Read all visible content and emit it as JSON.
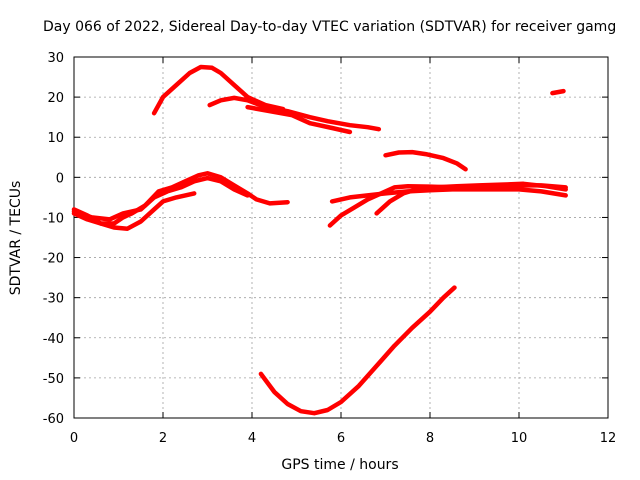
{
  "chart_data": {
    "type": "line",
    "title": "Day 066 of 2022, Sidereal Day-to-day VTEC variation (SDTVAR) for receiver gamg",
    "xlabel": "GPS time / hours",
    "ylabel": "SDTVAR / TECUs",
    "xlim": [
      0,
      12
    ],
    "ylim": [
      -60,
      30
    ],
    "xticks": [
      0,
      2,
      4,
      6,
      8,
      10,
      12
    ],
    "yticks": [
      -60,
      -50,
      -40,
      -30,
      -20,
      -10,
      0,
      10,
      20,
      30
    ],
    "grid": true,
    "color": "#ff0000",
    "series": [
      {
        "name": "track-1",
        "points": [
          [
            1.8,
            16
          ],
          [
            2.0,
            20
          ],
          [
            2.3,
            23
          ],
          [
            2.6,
            26
          ],
          [
            2.85,
            27.5
          ],
          [
            3.1,
            27.3
          ],
          [
            3.3,
            26
          ],
          [
            3.6,
            23
          ],
          [
            3.9,
            20
          ],
          [
            4.3,
            18
          ],
          [
            4.7,
            17
          ]
        ]
      },
      {
        "name": "track-2",
        "points": [
          [
            3.05,
            18
          ],
          [
            3.3,
            19.2
          ],
          [
            3.6,
            19.8
          ],
          [
            3.9,
            19.2
          ],
          [
            4.3,
            17.5
          ],
          [
            4.8,
            16.5
          ],
          [
            5.3,
            15
          ],
          [
            5.7,
            14
          ],
          [
            6.2,
            13
          ],
          [
            6.6,
            12.5
          ],
          [
            6.85,
            12
          ]
        ]
      },
      {
        "name": "track-3",
        "points": [
          [
            3.9,
            17.5
          ],
          [
            4.4,
            16.5
          ],
          [
            4.9,
            15.5
          ],
          [
            5.3,
            13.5
          ],
          [
            5.8,
            12.3
          ],
          [
            6.2,
            11.3
          ]
        ]
      },
      {
        "name": "track-4",
        "points": [
          [
            7.0,
            5.5
          ],
          [
            7.3,
            6.2
          ],
          [
            7.6,
            6.3
          ],
          [
            7.9,
            5.8
          ],
          [
            8.3,
            4.8
          ],
          [
            8.6,
            3.5
          ],
          [
            8.8,
            2
          ]
        ]
      },
      {
        "name": "track-5",
        "points": [
          [
            10.75,
            21
          ],
          [
            11.0,
            21.5
          ]
        ]
      },
      {
        "name": "track-6",
        "points": [
          [
            0.0,
            -8
          ],
          [
            0.3,
            -9.5
          ],
          [
            0.6,
            -11.5
          ],
          [
            0.9,
            -12.5
          ],
          [
            1.2,
            -12.8
          ],
          [
            1.5,
            -11
          ],
          [
            1.8,
            -8
          ],
          [
            2.0,
            -6
          ],
          [
            2.3,
            -5
          ],
          [
            2.7,
            -4
          ]
        ]
      },
      {
        "name": "track-7",
        "points": [
          [
            0.0,
            -9
          ],
          [
            0.3,
            -10.5
          ],
          [
            0.6,
            -11.5
          ],
          [
            0.9,
            -11.5
          ],
          [
            1.1,
            -10
          ],
          [
            1.3,
            -9
          ],
          [
            1.6,
            -7
          ],
          [
            1.9,
            -3.5
          ],
          [
            2.2,
            -2.5
          ],
          [
            2.5,
            -1
          ],
          [
            2.8,
            0.5
          ],
          [
            3.0,
            1
          ],
          [
            3.3,
            0
          ],
          [
            3.6,
            -2
          ],
          [
            3.9,
            -4
          ],
          [
            4.1,
            -5.5
          ],
          [
            4.4,
            -6.5
          ],
          [
            4.8,
            -6.2
          ]
        ]
      },
      {
        "name": "track-8",
        "points": [
          [
            0.0,
            -8.5
          ],
          [
            0.4,
            -10
          ],
          [
            0.8,
            -10.5
          ],
          [
            1.1,
            -9
          ],
          [
            1.5,
            -8
          ],
          [
            1.8,
            -5
          ],
          [
            2.1,
            -3.5
          ],
          [
            2.4,
            -2.5
          ],
          [
            2.7,
            -1
          ],
          [
            3.0,
            -0.2
          ],
          [
            3.3,
            -1
          ],
          [
            3.6,
            -3
          ],
          [
            3.9,
            -4.5
          ]
        ]
      },
      {
        "name": "track-9",
        "points": [
          [
            5.75,
            -12
          ],
          [
            6.0,
            -9.5
          ],
          [
            6.3,
            -7.5
          ],
          [
            6.6,
            -5.5
          ],
          [
            6.9,
            -4
          ],
          [
            7.2,
            -2.5
          ],
          [
            7.5,
            -2.2
          ],
          [
            8.0,
            -2.3
          ],
          [
            8.5,
            -2.5
          ],
          [
            9.0,
            -2.2
          ],
          [
            9.5,
            -2.2
          ],
          [
            10.0,
            -2
          ],
          [
            10.5,
            -2
          ],
          [
            11.05,
            -2.5
          ]
        ]
      },
      {
        "name": "track-10",
        "points": [
          [
            5.8,
            -6
          ],
          [
            6.2,
            -5
          ],
          [
            6.6,
            -4.5
          ],
          [
            7.0,
            -4
          ],
          [
            7.5,
            -3.5
          ],
          [
            8.0,
            -3.2
          ],
          [
            8.5,
            -3
          ],
          [
            9.0,
            -3
          ],
          [
            9.5,
            -3
          ],
          [
            10.0,
            -3
          ],
          [
            10.5,
            -3.5
          ],
          [
            11.05,
            -4.5
          ]
        ]
      },
      {
        "name": "track-11",
        "points": [
          [
            6.8,
            -9
          ],
          [
            7.1,
            -6
          ],
          [
            7.4,
            -4
          ],
          [
            7.7,
            -3
          ],
          [
            8.1,
            -2.5
          ],
          [
            8.6,
            -2.2
          ],
          [
            9.1,
            -2
          ],
          [
            9.6,
            -1.8
          ],
          [
            10.1,
            -1.6
          ],
          [
            10.6,
            -2.2
          ],
          [
            11.05,
            -3
          ]
        ]
      },
      {
        "name": "track-12",
        "points": [
          [
            4.2,
            -49
          ],
          [
            4.5,
            -53.5
          ],
          [
            4.8,
            -56.5
          ],
          [
            5.1,
            -58.3
          ],
          [
            5.4,
            -58.8
          ],
          [
            5.7,
            -58
          ],
          [
            6.0,
            -56
          ],
          [
            6.4,
            -52
          ],
          [
            6.8,
            -47
          ],
          [
            7.2,
            -42
          ],
          [
            7.6,
            -37.5
          ],
          [
            8.0,
            -33.5
          ],
          [
            8.3,
            -30
          ],
          [
            8.55,
            -27.5
          ]
        ]
      }
    ]
  }
}
